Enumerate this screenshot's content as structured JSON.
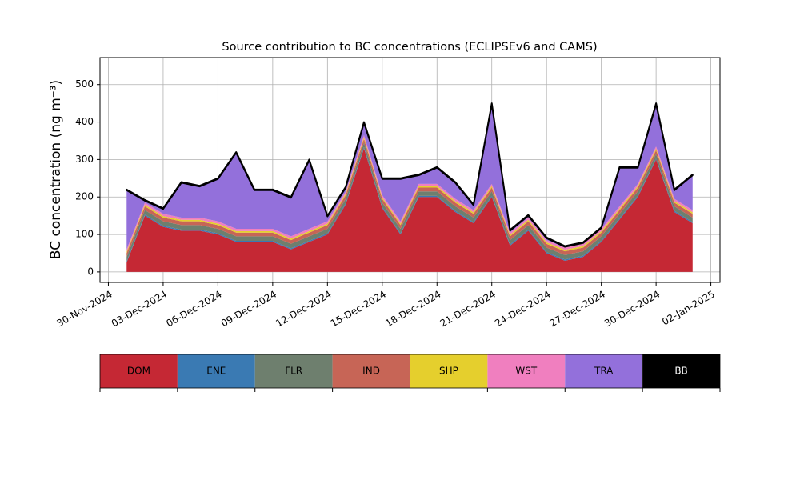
{
  "chart_data": {
    "type": "stacked_area",
    "title": "Source contribution to BC concentrations (ECLIPSEv6 and CAMS)",
    "y_label": "BC concentration (ng m⁻³)",
    "x": [
      "2024-12-01",
      "2024-12-02",
      "2024-12-03",
      "2024-12-04",
      "2024-12-05",
      "2024-12-06",
      "2024-12-07",
      "2024-12-08",
      "2024-12-09",
      "2024-12-10",
      "2024-12-11",
      "2024-12-12",
      "2024-12-13",
      "2024-12-14",
      "2024-12-15",
      "2024-12-16",
      "2024-12-17",
      "2024-12-18",
      "2024-12-19",
      "2024-12-20",
      "2024-12-21",
      "2024-12-22",
      "2024-12-23",
      "2024-12-24",
      "2024-12-25",
      "2024-12-26",
      "2024-12-27",
      "2024-12-28",
      "2024-12-29",
      "2024-12-30",
      "2024-12-31",
      "2025-01-01"
    ],
    "series": [
      {
        "name": "DOM",
        "color": "#c52834",
        "values": [
          25,
          150,
          120,
          110,
          110,
          100,
          80,
          80,
          80,
          60,
          80,
          100,
          180,
          330,
          170,
          100,
          200,
          200,
          160,
          130,
          200,
          70,
          110,
          50,
          30,
          40,
          80,
          140,
          200,
          300,
          160,
          130
        ]
      },
      {
        "name": "ENE",
        "color": "#3a7ab3",
        "values": [
          3,
          3,
          3,
          3,
          3,
          3,
          3,
          3,
          3,
          3,
          3,
          3,
          3,
          3,
          3,
          3,
          3,
          3,
          3,
          3,
          3,
          3,
          3,
          3,
          3,
          3,
          3,
          3,
          3,
          3,
          3,
          3
        ]
      },
      {
        "name": "FLR",
        "color": "#6e7f6e",
        "values": [
          12,
          12,
          12,
          12,
          12,
          12,
          12,
          12,
          12,
          12,
          12,
          12,
          12,
          12,
          12,
          12,
          12,
          12,
          12,
          12,
          12,
          12,
          12,
          12,
          12,
          12,
          12,
          12,
          12,
          12,
          12,
          12
        ]
      },
      {
        "name": "IND",
        "color": "#c76556",
        "values": [
          10,
          10,
          10,
          10,
          10,
          10,
          10,
          10,
          10,
          10,
          10,
          10,
          10,
          10,
          10,
          10,
          10,
          10,
          10,
          10,
          10,
          10,
          10,
          10,
          10,
          10,
          10,
          10,
          10,
          10,
          10,
          10
        ]
      },
      {
        "name": "SHP",
        "color": "#e5cf2d",
        "values": [
          4,
          4,
          4,
          4,
          4,
          4,
          4,
          4,
          4,
          4,
          4,
          4,
          4,
          4,
          4,
          4,
          4,
          4,
          4,
          4,
          4,
          4,
          4,
          4,
          4,
          4,
          4,
          4,
          4,
          4,
          4,
          4
        ]
      },
      {
        "name": "WST",
        "color": "#f07fbf",
        "values": [
          6,
          6,
          6,
          6,
          6,
          6,
          6,
          6,
          6,
          6,
          6,
          6,
          6,
          6,
          6,
          6,
          6,
          6,
          6,
          6,
          6,
          6,
          6,
          6,
          6,
          6,
          6,
          6,
          6,
          6,
          6,
          6
        ]
      },
      {
        "name": "TRA",
        "color": "#9370db",
        "values": [
          158,
          5,
          13,
          93,
          83,
          113,
          203,
          103,
          103,
          103,
          183,
          13,
          10,
          33,
          43,
          113,
          23,
          43,
          43,
          13,
          213,
          5,
          5,
          5,
          2,
          2,
          2,
          103,
          43,
          113,
          23,
          93
        ]
      },
      {
        "name": "BB",
        "color": "#000000",
        "values": [
          2,
          2,
          2,
          2,
          2,
          2,
          2,
          2,
          2,
          2,
          2,
          2,
          2,
          2,
          2,
          2,
          2,
          2,
          2,
          2,
          2,
          2,
          2,
          2,
          2,
          2,
          2,
          2,
          2,
          2,
          2,
          2
        ]
      }
    ],
    "xlim": [
      "2024-11-29T13:00",
      "2025-01-02T12:00"
    ],
    "xticks": [
      {
        "value": "2024-11-30",
        "label": "30-Nov-2024"
      },
      {
        "value": "2024-12-03",
        "label": "03-Dec-2024"
      },
      {
        "value": "2024-12-06",
        "label": "06-Dec-2024"
      },
      {
        "value": "2024-12-09",
        "label": "09-Dec-2024"
      },
      {
        "value": "2024-12-12",
        "label": "12-Dec-2024"
      },
      {
        "value": "2024-12-15",
        "label": "15-Dec-2024"
      },
      {
        "value": "2024-12-18",
        "label": "18-Dec-2024"
      },
      {
        "value": "2024-12-21",
        "label": "21-Dec-2024"
      },
      {
        "value": "2024-12-24",
        "label": "24-Dec-2024"
      },
      {
        "value": "2024-12-27",
        "label": "27-Dec-2024"
      },
      {
        "value": "2024-12-30",
        "label": "30-Dec-2024"
      },
      {
        "value": "2025-01-02",
        "label": "02-Jan-2025"
      }
    ],
    "ylim": [
      -28,
      572
    ],
    "yticks": [
      0,
      100,
      200,
      300,
      400,
      500
    ],
    "grid": true
  }
}
